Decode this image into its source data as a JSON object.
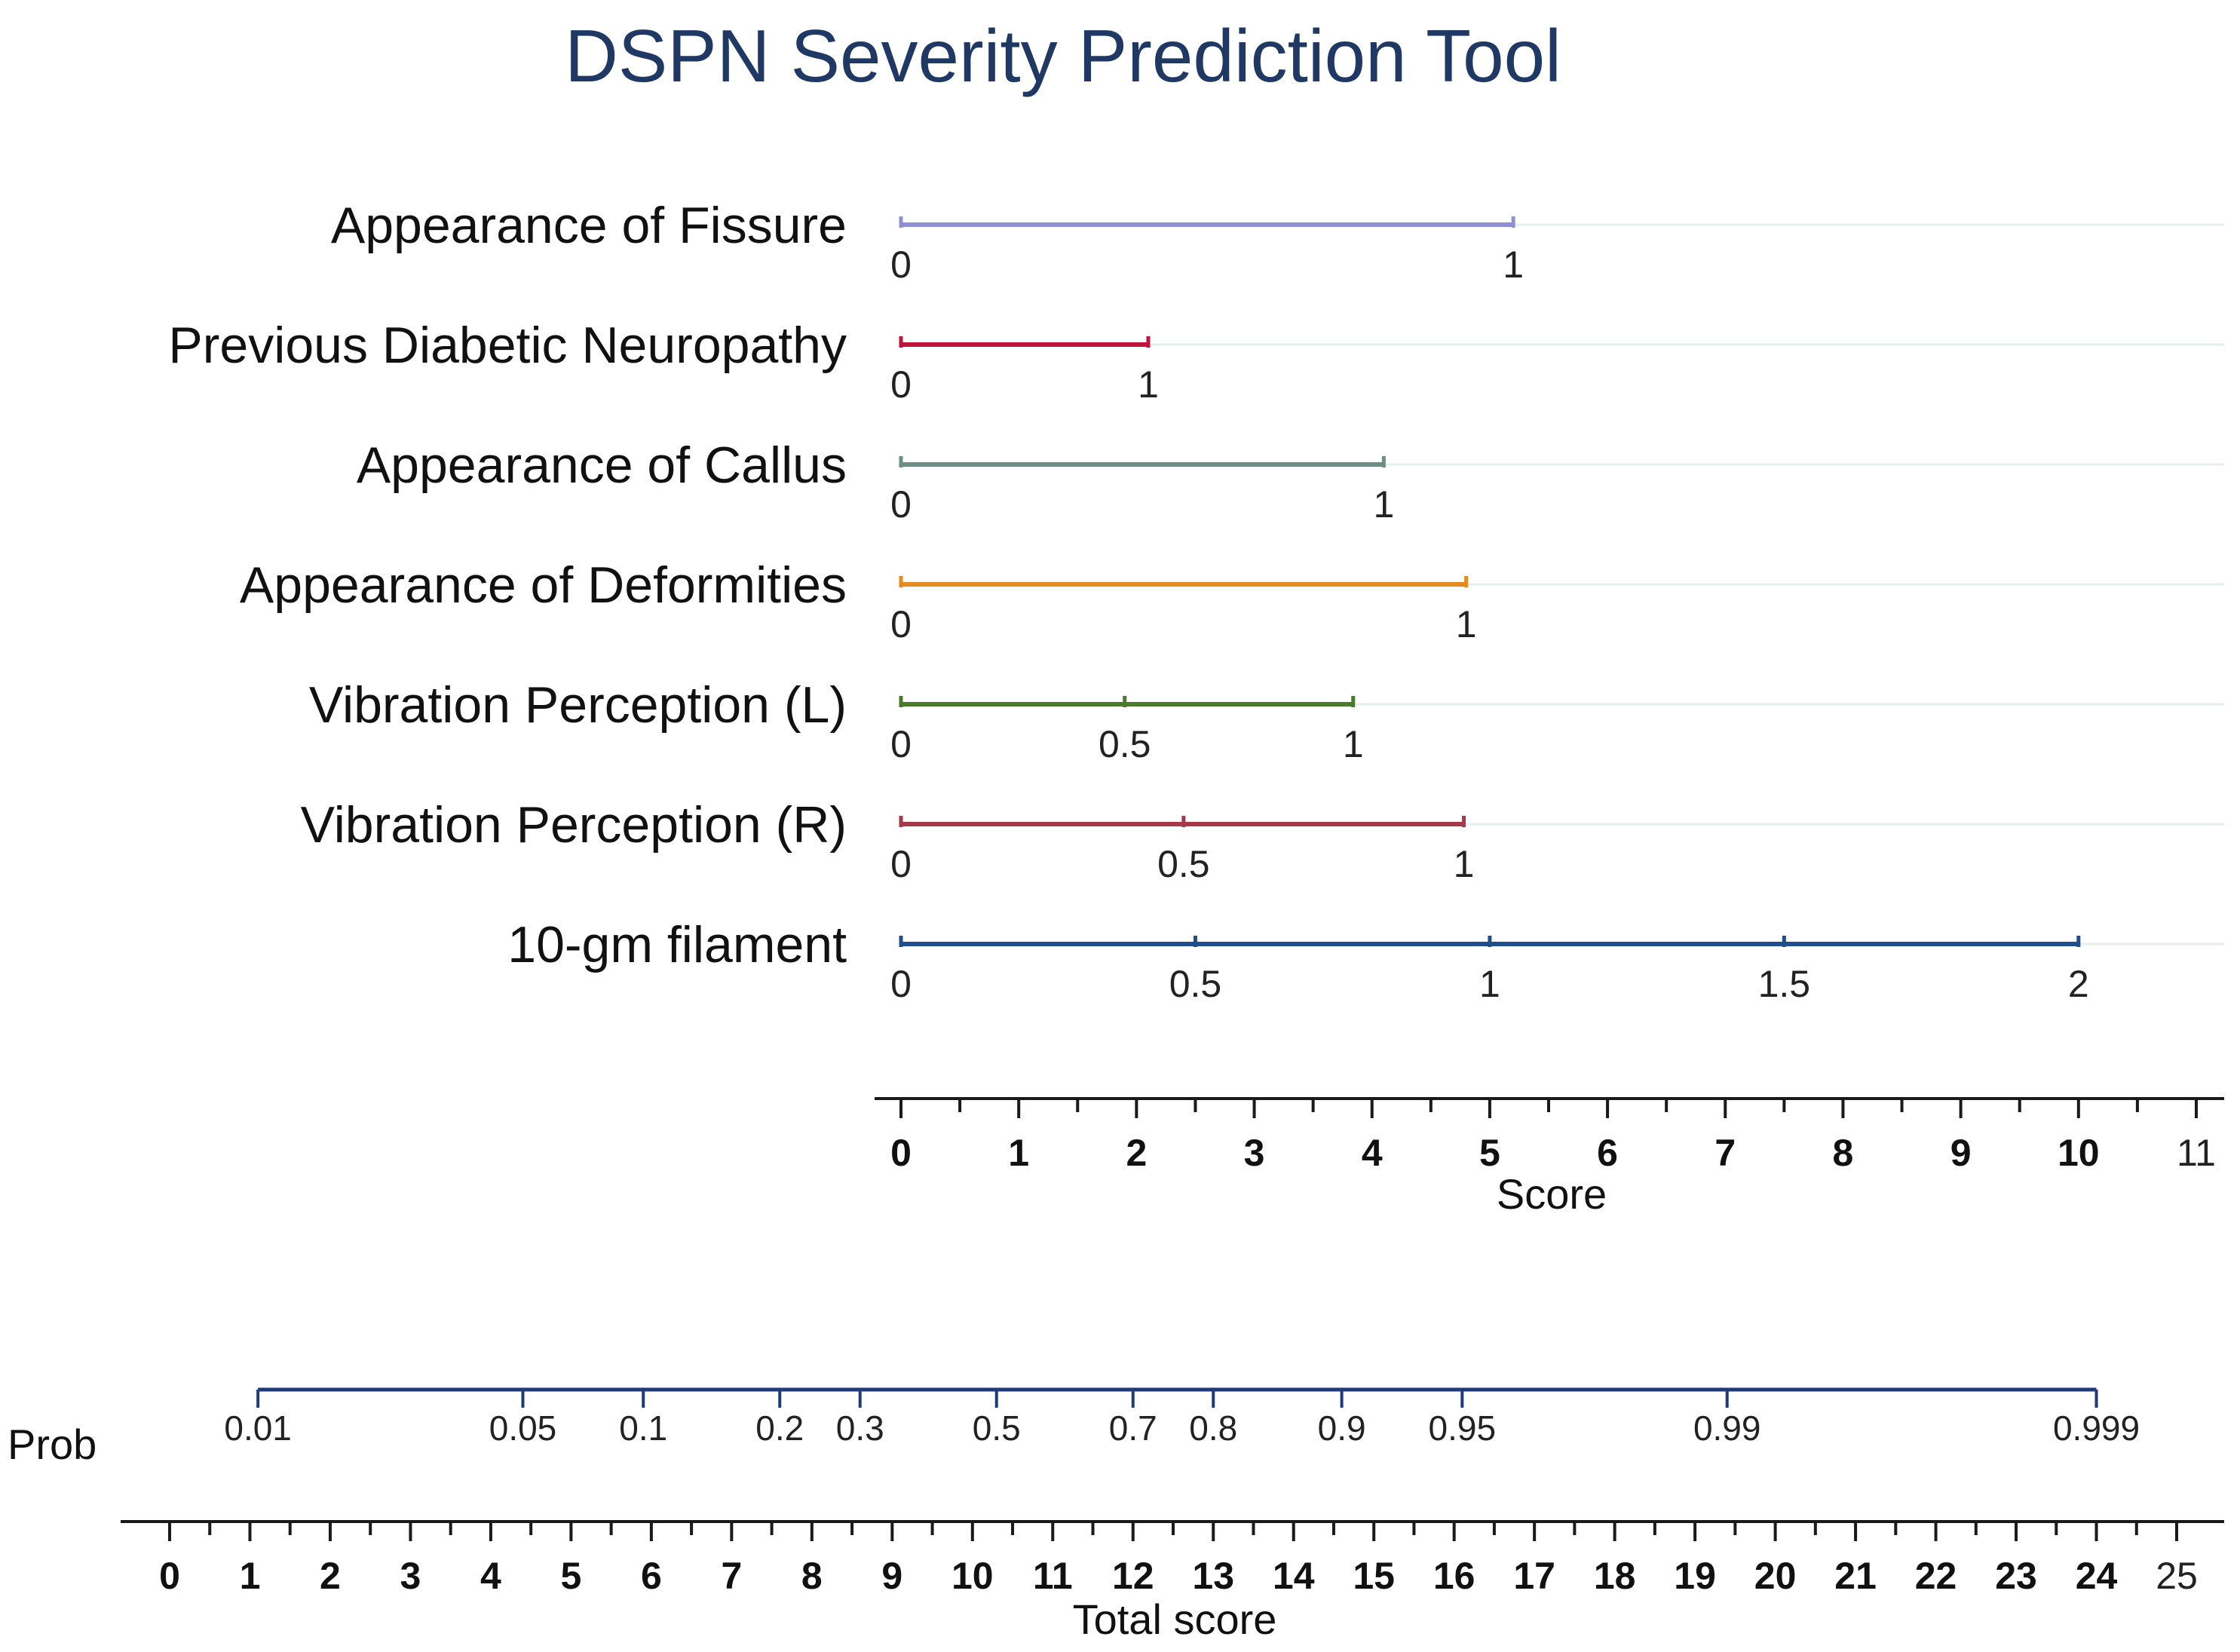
{
  "chart_data": {
    "type": "nomogram",
    "title": "DSPN Severity Prediction Tool",
    "score_axis": {
      "label": "Score",
      "min": 0,
      "max": 11,
      "ticks": [
        0,
        1,
        2,
        3,
        4,
        5,
        6,
        7,
        8,
        9,
        10,
        11
      ],
      "minor_step": 0.5
    },
    "variables": [
      {
        "name": "Appearance of Fissure",
        "color": "#8f8fd6",
        "points": [
          {
            "label": "0",
            "score": 0
          },
          {
            "label": "1",
            "score": 5.2
          }
        ]
      },
      {
        "name": "Previous Diabetic Neuropathy",
        "color": "#c0143c",
        "points": [
          {
            "label": "0",
            "score": 0
          },
          {
            "label": "1",
            "score": 2.1
          }
        ]
      },
      {
        "name": "Appearance of Callus",
        "color": "#6b8e85",
        "points": [
          {
            "label": "0",
            "score": 0
          },
          {
            "label": "1",
            "score": 4.1
          }
        ]
      },
      {
        "name": "Appearance of Deformities",
        "color": "#e58a1f",
        "points": [
          {
            "label": "0",
            "score": 0
          },
          {
            "label": "1",
            "score": 4.8
          }
        ]
      },
      {
        "name": "Vibration Perception (L)",
        "color": "#4b7a2a",
        "points": [
          {
            "label": "0",
            "score": 0
          },
          {
            "label": "0.5",
            "score": 1.9
          },
          {
            "label": "1",
            "score": 3.84
          }
        ]
      },
      {
        "name": "Vibration Perception (R)",
        "color": "#a63a4a",
        "points": [
          {
            "label": "0",
            "score": 0
          },
          {
            "label": "0.5",
            "score": 2.4
          },
          {
            "label": "1",
            "score": 4.78
          }
        ]
      },
      {
        "name": "10-gm filament",
        "color": "#1f4e8c",
        "points": [
          {
            "label": "0",
            "score": 0
          },
          {
            "label": "0.5",
            "score": 2.5
          },
          {
            "label": "1",
            "score": 5
          },
          {
            "label": "1.5",
            "score": 7.5
          },
          {
            "label": "2",
            "score": 10
          }
        ]
      }
    ],
    "total_axis": {
      "label": "Total score",
      "min": 0,
      "max": 25,
      "ticks": [
        0,
        1,
        2,
        3,
        4,
        5,
        6,
        7,
        8,
        9,
        10,
        11,
        12,
        13,
        14,
        15,
        16,
        17,
        18,
        19,
        20,
        21,
        22,
        23,
        24,
        25
      ],
      "minor_step": 0.5
    },
    "prob_axis": {
      "label": "Prob",
      "color": "#1f3a7a",
      "points": [
        {
          "label": "0.01",
          "total": 1.1
        },
        {
          "label": "0.05",
          "total": 4.4
        },
        {
          "label": "0.1",
          "total": 5.9
        },
        {
          "label": "0.2",
          "total": 7.6
        },
        {
          "label": "0.3",
          "total": 8.6
        },
        {
          "label": "0.5",
          "total": 10.3
        },
        {
          "label": "0.7",
          "total": 12.0
        },
        {
          "label": "0.8",
          "total": 13.0
        },
        {
          "label": "0.9",
          "total": 14.6
        },
        {
          "label": "0.95",
          "total": 16.1
        },
        {
          "label": "0.99",
          "total": 19.4
        },
        {
          "label": "0.999",
          "total": 24.0
        }
      ]
    }
  }
}
